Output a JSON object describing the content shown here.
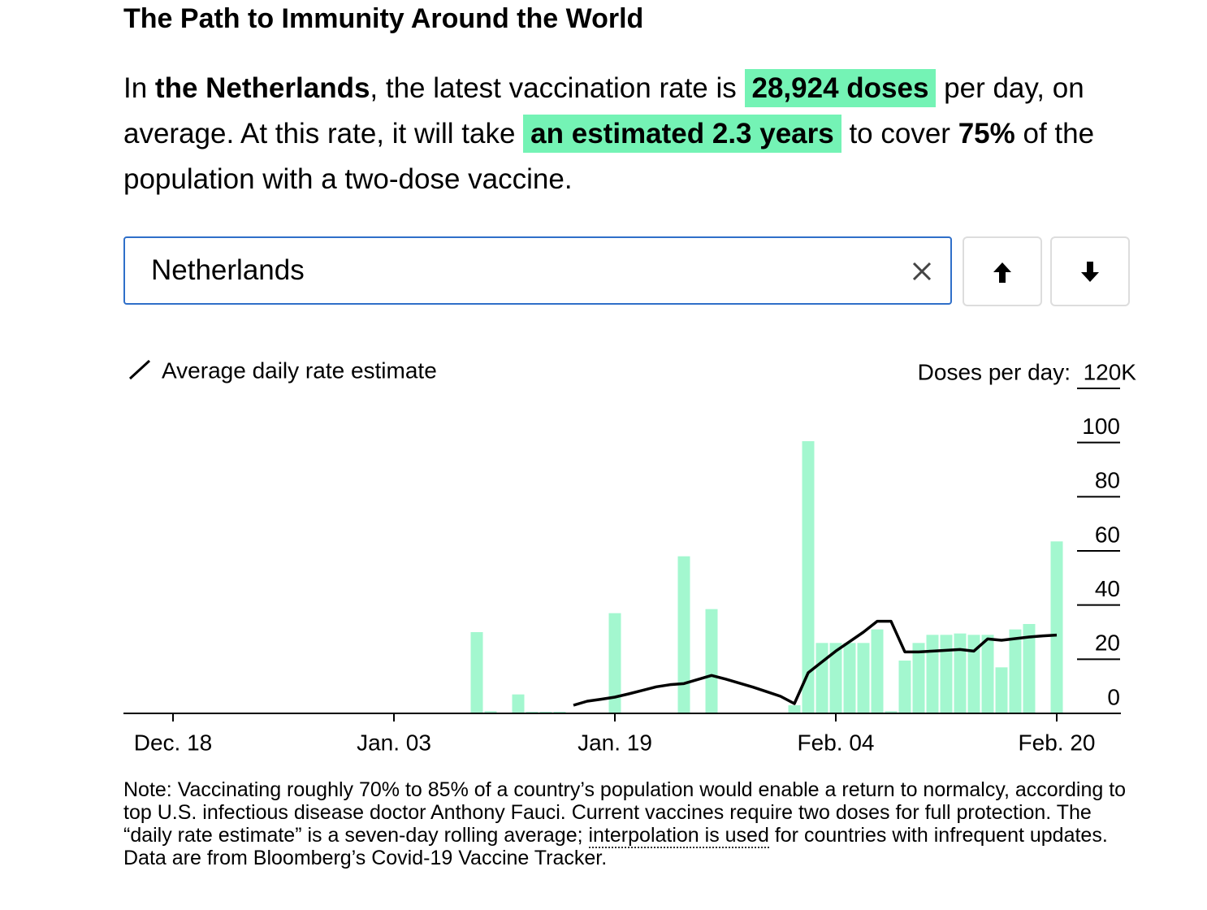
{
  "title": "The Path to Immunity Around the World",
  "summary": {
    "parts": [
      "In ",
      "the Netherlands",
      ", the latest vaccination rate is ",
      "28,924 doses",
      " per day, on average. At this rate, it will take ",
      "an estimated 2.3 years",
      " to cover ",
      "75%",
      " of the population with a two-dose vaccine."
    ]
  },
  "search": {
    "value": "Netherlands"
  },
  "note": {
    "parts": [
      "Note: Vaccinating roughly 70% to 85% of a country’s population would enable a return to normalcy, according to top U.S. infectious disease doctor Anthony Fauci. Current vaccines require two doses for full protection. The “daily rate estimate” is a seven-day rolling average; ",
      "interpolation is used",
      " for countries with infrequent updates. Data are from Bloomberg’s Covid-19 Vaccine Tracker."
    ]
  },
  "chart_data": {
    "type": "bar-line",
    "y_label": "Doses per day:",
    "categories": [
      "Dec. 18",
      null,
      null,
      null,
      null,
      null,
      null,
      null,
      null,
      null,
      null,
      null,
      null,
      null,
      null,
      null,
      "Jan. 03",
      null,
      null,
      null,
      null,
      null,
      null,
      null,
      null,
      null,
      null,
      null,
      null,
      null,
      null,
      null,
      "Jan. 19",
      null,
      null,
      null,
      null,
      null,
      null,
      null,
      null,
      null,
      null,
      null,
      null,
      null,
      null,
      null,
      "Feb. 04",
      null,
      null,
      null,
      null,
      null,
      null,
      null,
      null,
      null,
      null,
      null,
      null,
      null,
      null,
      null,
      "Feb. 20"
    ],
    "series": [
      {
        "type": "bar",
        "color": "#a3f7cf",
        "values": [
          null,
          null,
          null,
          null,
          null,
          null,
          null,
          null,
          null,
          null,
          null,
          null,
          null,
          null,
          null,
          null,
          null,
          null,
          null,
          null,
          null,
          null,
          30,
          0.8,
          null,
          7,
          0.6,
          0.6,
          0.6,
          null,
          null,
          null,
          37,
          null,
          null,
          null,
          null,
          58,
          null,
          38.5,
          null,
          null,
          null,
          null,
          null,
          3,
          100.5,
          26,
          26,
          26,
          26,
          31,
          0.8,
          19.5,
          26,
          29,
          29,
          29.5,
          29,
          29,
          17,
          31,
          33,
          null,
          63.5
        ]
      },
      {
        "type": "line",
        "name": "Average daily rate estimate",
        "color": "#000000",
        "values": [
          null,
          null,
          null,
          null,
          null,
          null,
          null,
          null,
          null,
          null,
          null,
          null,
          null,
          null,
          null,
          null,
          null,
          null,
          null,
          null,
          null,
          null,
          null,
          null,
          null,
          null,
          null,
          null,
          null,
          3,
          4.5,
          5.2,
          6,
          7.2,
          8.5,
          9.8,
          10.6,
          11,
          12.5,
          14,
          12.7,
          11.2,
          9.7,
          8,
          6.3,
          3.6,
          15,
          19,
          23,
          26.5,
          30,
          34,
          34,
          22.7,
          22.7,
          23,
          23.3,
          23.6,
          23,
          27.5,
          27,
          27.6,
          28.2,
          28.6,
          28.9
        ]
      }
    ],
    "ylim": [
      0,
      120
    ],
    "yticks": [
      0,
      20,
      40,
      60,
      80,
      100,
      {
        "value": 120,
        "label": "120K"
      }
    ]
  }
}
